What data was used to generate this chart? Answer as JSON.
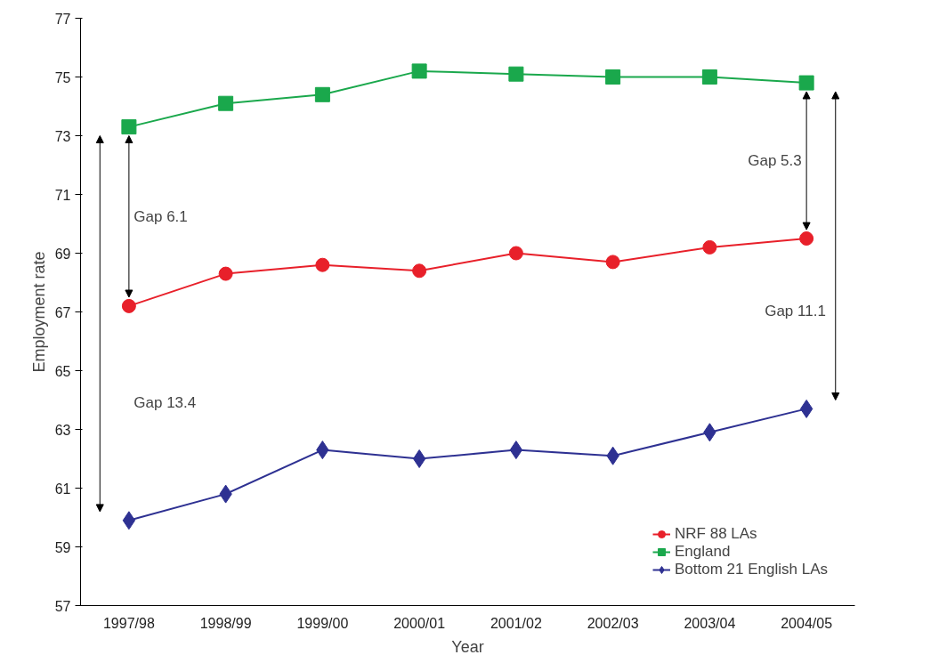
{
  "chart_data": {
    "type": "line",
    "xlabel": "Year",
    "ylabel": "Employment rate",
    "categories": [
      "1997/98",
      "1998/99",
      "1999/00",
      "2000/01",
      "2001/02",
      "2002/03",
      "2003/04",
      "2004/05"
    ],
    "series": [
      {
        "name": "NRF 88 LAs",
        "color": "#e8202a",
        "marker": "circle",
        "values": [
          67.2,
          68.3,
          68.6,
          68.4,
          69.0,
          68.7,
          69.2,
          69.5
        ]
      },
      {
        "name": "England",
        "color": "#1aa84c",
        "marker": "square",
        "values": [
          73.3,
          74.1,
          74.4,
          75.2,
          75.1,
          75.0,
          75.0,
          74.8
        ]
      },
      {
        "name": "Bottom 21 English LAs",
        "color": "#2e3192",
        "marker": "diamond",
        "values": [
          59.9,
          60.8,
          62.3,
          62.0,
          62.3,
          62.1,
          62.9,
          63.7
        ]
      }
    ],
    "ylim": [
      57,
      77
    ],
    "yticks": [
      57,
      59,
      61,
      63,
      65,
      67,
      69,
      71,
      73,
      75,
      77
    ],
    "grid": false,
    "legend": "bottom right",
    "annotations": [
      "Gap 6.1",
      "Gap 13.4",
      "Gap 5.3",
      "Gap 11.1"
    ]
  }
}
